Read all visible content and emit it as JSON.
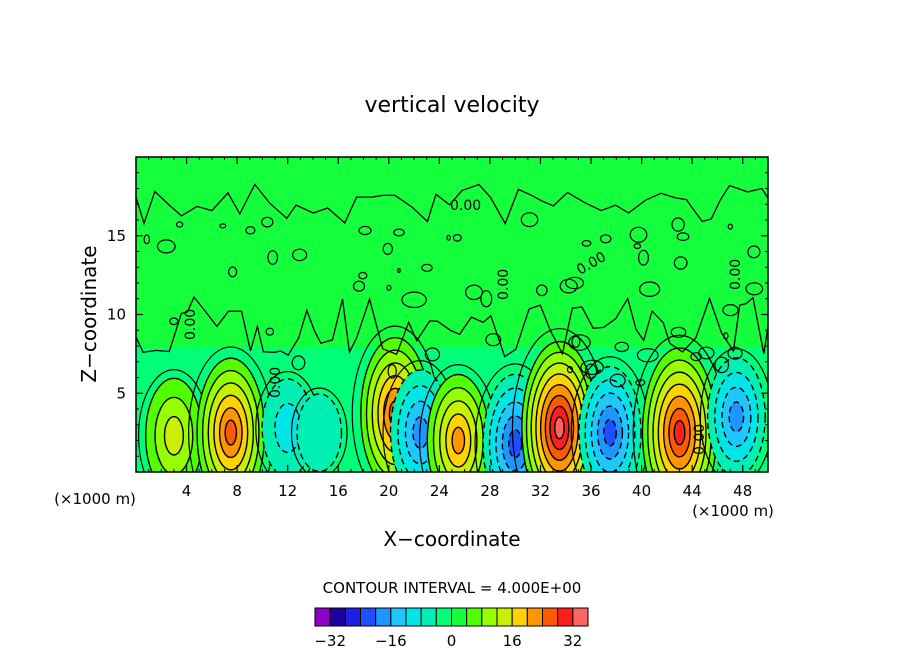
{
  "chart_data": {
    "type": "heatmap",
    "title": "vertical velocity",
    "xlabel": "X−coordinate",
    "ylabel": "Z−coordinate",
    "x_unit_left": "(×1000 m)",
    "x_unit_right": "(×1000 m)",
    "xlim": [
      0,
      50
    ],
    "ylim": [
      0,
      20
    ],
    "xticks": [
      4,
      8,
      12,
      16,
      20,
      24,
      28,
      32,
      36,
      40,
      44,
      48
    ],
    "yticks": [
      5,
      10,
      15
    ],
    "contour_label": "0.00",
    "contour_interval_text": "CONTOUR INTERVAL = 4.000E+00",
    "colorbar": {
      "min": -36,
      "max": 36,
      "step": 4,
      "ticks": [
        "−32",
        "−16",
        "0",
        "16",
        "32"
      ],
      "tick_values": [
        -32,
        -16,
        0,
        16,
        32
      ],
      "colors": [
        "#8c00c8",
        "#1e00a0",
        "#1e1ee6",
        "#1e50ff",
        "#1e96ff",
        "#1ec8ff",
        "#00e6e6",
        "#00f0b4",
        "#00ff78",
        "#14ff3c",
        "#50ff00",
        "#96ff00",
        "#c8f000",
        "#ffd200",
        "#ff9600",
        "#ff5a00",
        "#ff1e1e",
        "#ff6464"
      ]
    },
    "features": [
      {
        "x": 3.0,
        "z": 2.3,
        "w": 15
      },
      {
        "x": 7.5,
        "z": 2.5,
        "w": 25
      },
      {
        "x": 12.0,
        "z": 2.8,
        "w": -10
      },
      {
        "x": 14.5,
        "z": 2.5,
        "w": -4
      },
      {
        "x": 20.5,
        "z": 3.7,
        "w": 26
      },
      {
        "x": 22.5,
        "z": 2.5,
        "w": -18
      },
      {
        "x": 25.5,
        "z": 2.0,
        "w": 20
      },
      {
        "x": 30.0,
        "z": 1.8,
        "w": -22
      },
      {
        "x": 33.5,
        "z": 2.8,
        "w": 32
      },
      {
        "x": 37.5,
        "z": 2.5,
        "w": -20
      },
      {
        "x": 43.0,
        "z": 2.5,
        "w": 31
      },
      {
        "x": 47.5,
        "z": 3.5,
        "w": -16
      }
    ]
  }
}
